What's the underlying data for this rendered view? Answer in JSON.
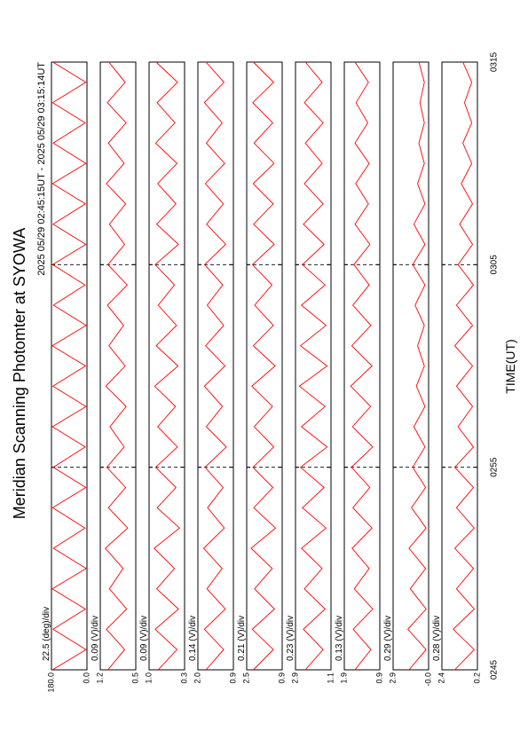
{
  "page": {
    "title": "Meridian Scanning Photomter at SYOWA",
    "subtitle": "2025 05/29 02:45:15UT - 2025 05/29 03:15:14UT"
  },
  "xaxis": {
    "label": "TIME(UT)",
    "xlim": [
      165,
      195
    ],
    "grid": true,
    "xticks": [
      {
        "value": 165,
        "label": "0245"
      },
      {
        "value": 175,
        "label": "0255"
      },
      {
        "value": 185,
        "label": "0305"
      },
      {
        "value": 195,
        "label": "0315"
      }
    ],
    "x": [
      165,
      166,
      167,
      168,
      169,
      170,
      171,
      172,
      173,
      174,
      175,
      176,
      177,
      178,
      179,
      180,
      181,
      182,
      183,
      184,
      185,
      186,
      187,
      188,
      189,
      190,
      191,
      192,
      193,
      194,
      195
    ]
  },
  "chart_data": [
    {
      "type": "line",
      "scale_label": "22.5 (deg)/div",
      "ylim": [
        0,
        180
      ],
      "yticks": [
        {
          "value": 0,
          "label": "0.0"
        },
        {
          "value": 180,
          "label": "180.0"
        }
      ],
      "series": [
        {
          "color": "#ff0000",
          "values": [
            175,
            5,
            172,
            8,
            176,
            4,
            170,
            10,
            174,
            6,
            171,
            9,
            175,
            5,
            173,
            7,
            176,
            4,
            170,
            10,
            174,
            6,
            172,
            8,
            175,
            5,
            171,
            9,
            174,
            6,
            173
          ]
        }
      ]
    },
    {
      "type": "line",
      "scale_label": "0.09 (V)/div",
      "ylim": [
        0.5,
        1.2
      ],
      "yticks": [
        0.5,
        1.2
      ],
      "series": [
        {
          "color": "#ff0000",
          "values": [
            1.05,
            0.72,
            1.08,
            0.68,
            1.02,
            0.75,
            1.1,
            0.66,
            1.04,
            0.7,
            1.07,
            0.73,
            1.01,
            0.69,
            1.09,
            0.71,
            1.03,
            0.74,
            1.06,
            0.67,
            1.05,
            0.72,
            1.02,
            0.7,
            1.08,
            0.73,
            1.04,
            0.69,
            1.06,
            0.71,
            1.03
          ]
        }
      ]
    },
    {
      "type": "line",
      "scale_label": "0.09 (V)/div",
      "ylim": [
        0.3,
        1.0
      ],
      "yticks": [
        0.3,
        {
          "value": 1.0,
          "label": "1.0"
        }
      ],
      "series": [
        {
          "color": "#ff0000",
          "values": [
            0.82,
            0.45,
            0.88,
            0.42,
            0.85,
            0.5,
            0.9,
            0.4,
            0.84,
            0.47,
            0.87,
            0.44,
            0.83,
            0.48,
            0.89,
            0.43,
            0.86,
            0.46,
            0.82,
            0.5,
            0.88,
            0.42,
            0.85,
            0.47,
            0.83,
            0.45,
            0.87,
            0.49,
            0.84,
            0.44,
            0.86
          ]
        }
      ]
    },
    {
      "type": "line",
      "scale_label": "0.14 (V)/div",
      "ylim": [
        0.9,
        2.0
      ],
      "yticks": [
        0.9,
        {
          "value": 2.0,
          "label": "2.0"
        }
      ],
      "series": [
        {
          "color": "#ff0000",
          "values": [
            1.75,
            1.2,
            1.8,
            1.15,
            1.72,
            1.25,
            1.82,
            1.18,
            1.7,
            1.22,
            1.78,
            1.12,
            1.74,
            1.24,
            1.8,
            1.16,
            1.76,
            1.2,
            1.71,
            1.23,
            1.79,
            1.14,
            1.73,
            1.21,
            1.77,
            1.17,
            1.74,
            1.25,
            1.8,
            1.19,
            1.75
          ]
        }
      ]
    },
    {
      "type": "line",
      "scale_label": "0.21 (V)/div",
      "ylim": [
        0.9,
        2.5
      ],
      "yticks": [
        0.9,
        2.5
      ],
      "series": [
        {
          "color": "#ff0000",
          "values": [
            2.2,
            1.3,
            2.25,
            1.25,
            2.15,
            1.35,
            2.3,
            1.2,
            2.18,
            1.32,
            2.22,
            1.28,
            2.16,
            1.34,
            2.27,
            1.22,
            2.2,
            1.3,
            2.14,
            1.36,
            2.24,
            1.26,
            2.19,
            1.31,
            2.21,
            1.27,
            2.17,
            1.33,
            2.23,
            1.29,
            2.2
          ]
        }
      ]
    },
    {
      "type": "line",
      "scale_label": "0.23 (V)/div",
      "ylim": [
        1.1,
        2.9
      ],
      "yticks": [
        1.1,
        2.9
      ],
      "series": [
        {
          "color": "#ff0000",
          "values": [
            2.4,
            1.5,
            2.5,
            1.4,
            2.45,
            1.55,
            2.6,
            1.35,
            2.55,
            1.45,
            2.65,
            1.3,
            2.6,
            1.4,
            2.7,
            1.3,
            2.65,
            1.35,
            2.6,
            1.4,
            2.55,
            1.45,
            2.5,
            1.5,
            2.45,
            1.55,
            2.4,
            1.5,
            2.45,
            1.55,
            2.4
          ]
        }
      ]
    },
    {
      "type": "line",
      "scale_label": "0.13 (V)/div",
      "ylim": [
        0.9,
        1.9
      ],
      "yticks": [
        0.9,
        1.9
      ],
      "series": [
        {
          "color": "#ff0000",
          "values": [
            1.6,
            1.15,
            1.65,
            1.1,
            1.62,
            1.2,
            1.68,
            1.12,
            1.66,
            1.18,
            1.7,
            1.1,
            1.67,
            1.16,
            1.72,
            1.12,
            1.69,
            1.15,
            1.66,
            1.2,
            1.63,
            1.18,
            1.6,
            1.22,
            1.58,
            1.2,
            1.6,
            1.24,
            1.57,
            1.22,
            1.6
          ]
        }
      ]
    },
    {
      "type": "line",
      "scale_label": "0.29 (V)/div",
      "ylim": [
        0,
        2.9
      ],
      "yticks": [
        {
          "value": 0,
          "label": "-0.0"
        },
        2.9
      ],
      "series": [
        {
          "color": "#ff0000",
          "values": [
            1.6,
            0.2,
            1.7,
            0.2,
            1.5,
            0.25,
            1.6,
            0.2,
            1.4,
            0.25,
            1.3,
            0.3,
            1.2,
            0.3,
            1.0,
            0.35,
            0.9,
            0.35,
            1.1,
            0.3,
            1.3,
            0.3,
            1.2,
            0.3,
            0.9,
            0.35,
            0.8,
            0.35,
            0.7,
            0.35,
            0.8
          ]
        }
      ]
    },
    {
      "type": "line",
      "scale_label": "0.28 (V)/div",
      "ylim": [
        0.2,
        2.4
      ],
      "yticks": [
        0.2,
        2.4
      ],
      "series": [
        {
          "color": "#ff0000",
          "values": [
            1.6,
            0.4,
            1.7,
            0.4,
            1.5,
            0.45,
            1.6,
            0.4,
            1.5,
            0.45,
            1.6,
            0.45,
            1.4,
            0.5,
            1.5,
            0.5,
            1.6,
            0.5,
            1.5,
            0.45,
            1.4,
            0.5,
            1.3,
            0.5,
            1.2,
            0.55,
            1.1,
            0.55,
            1.0,
            0.55,
            1.1
          ]
        }
      ]
    }
  ]
}
